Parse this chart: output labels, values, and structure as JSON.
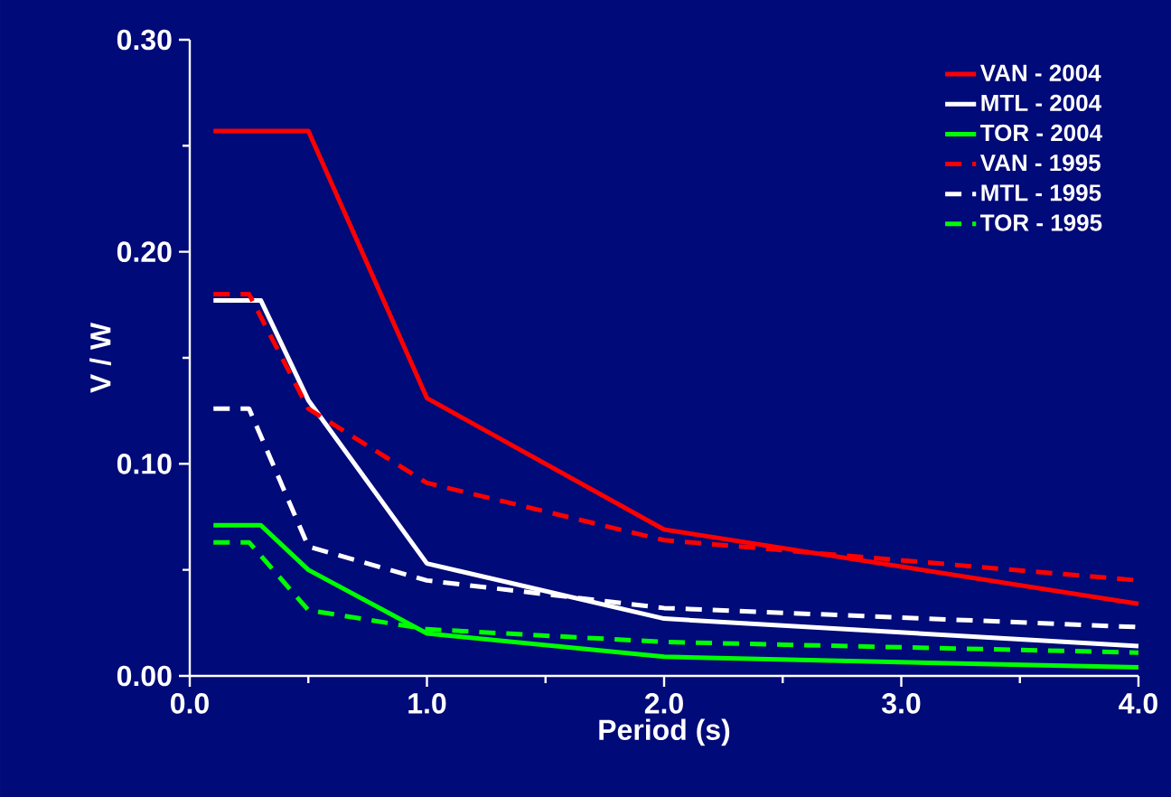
{
  "chart_data": {
    "type": "line",
    "xlabel": "Period (s)",
    "ylabel": "V / W",
    "xlim": [
      0,
      4
    ],
    "ylim": [
      0,
      0.3
    ],
    "xticks": [
      {
        "value": 0,
        "label": "0.0"
      },
      {
        "value": 1,
        "label": "1.0"
      },
      {
        "value": 2,
        "label": "2.0"
      },
      {
        "value": 3,
        "label": "3.0"
      },
      {
        "value": 4,
        "label": "4.0"
      }
    ],
    "yticks": [
      {
        "value": 0,
        "label": "0.00"
      },
      {
        "value": 0.1,
        "label": "0.10"
      },
      {
        "value": 0.2,
        "label": "0.20"
      },
      {
        "value": 0.3,
        "label": "0.30"
      }
    ],
    "legend": "top right",
    "grid": false,
    "marker": "none",
    "series": [
      {
        "name": "VAN - 2004",
        "color": "#ff0000",
        "line_style": "solid",
        "x": [
          0.1,
          0.5,
          1.0,
          2.0,
          4.0
        ],
        "values": [
          0.257,
          0.257,
          0.131,
          0.069,
          0.034
        ]
      },
      {
        "name": "MTL - 2004",
        "color": "#ffffff",
        "line_style": "solid",
        "x": [
          0.1,
          0.3,
          0.5,
          1.0,
          2.0,
          4.0
        ],
        "values": [
          0.177,
          0.177,
          0.13,
          0.053,
          0.027,
          0.014
        ]
      },
      {
        "name": "TOR - 2004",
        "color": "#00ff00",
        "line_style": "solid",
        "x": [
          0.1,
          0.3,
          0.5,
          1.0,
          2.0,
          4.0
        ],
        "values": [
          0.071,
          0.071,
          0.05,
          0.02,
          0.009,
          0.004
        ]
      },
      {
        "name": "VAN - 1995",
        "color": "#ff0000",
        "line_style": "dashed",
        "x": [
          0.1,
          0.25,
          0.5,
          1.0,
          2.0,
          4.0
        ],
        "values": [
          0.18,
          0.18,
          0.126,
          0.091,
          0.064,
          0.045
        ]
      },
      {
        "name": "MTL - 1995",
        "color": "#ffffff",
        "line_style": "dashed",
        "x": [
          0.1,
          0.25,
          0.5,
          1.0,
          2.0,
          4.0
        ],
        "values": [
          0.126,
          0.126,
          0.061,
          0.045,
          0.032,
          0.023
        ]
      },
      {
        "name": "TOR - 1995",
        "color": "#00ff00",
        "line_style": "dashed",
        "x": [
          0.1,
          0.25,
          0.5,
          1.0,
          2.0,
          4.0
        ],
        "values": [
          0.063,
          0.063,
          0.031,
          0.022,
          0.016,
          0.011
        ]
      }
    ]
  }
}
